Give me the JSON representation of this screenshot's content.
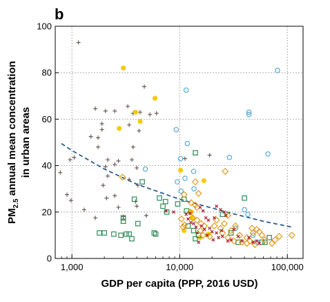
{
  "chart_data": {
    "type": "scatter",
    "panel_label": "b",
    "xlabel": "GDP per capita (PPP, 2016 USD)",
    "ylabel_line1_main": "PM",
    "ylabel_line1_sub": "2.5",
    "ylabel_line1_rest": " annual mean concentration",
    "ylabel_line2": "in urban areas",
    "x_scale": "log",
    "xlim": [
      700,
      140000
    ],
    "ylim": [
      0,
      100
    ],
    "x_ticks": [
      1000,
      10000,
      100000
    ],
    "x_tick_labels": [
      "1,000",
      "10,000",
      "100,000"
    ],
    "y_ticks": [
      0,
      20,
      40,
      60,
      80,
      100
    ],
    "y_tick_labels": [
      "0",
      "20",
      "40",
      "60",
      "80",
      "100"
    ],
    "grid": true,
    "trend_line": {
      "style": "dashed",
      "color": "#2a5d8f",
      "points": [
        [
          800,
          49.5
        ],
        [
          1000,
          46.5
        ],
        [
          2000,
          38.5
        ],
        [
          4000,
          32
        ],
        [
          10000,
          25.5
        ],
        [
          30000,
          19.5
        ],
        [
          60000,
          16
        ],
        [
          110000,
          13.5
        ]
      ]
    },
    "series": [
      {
        "marker": "plus",
        "color": "#6b5e57",
        "points": [
          [
            1150,
            93
          ],
          [
            4700,
            74
          ],
          [
            3300,
            65.5
          ],
          [
            1650,
            64.5
          ],
          [
            2050,
            63.5
          ],
          [
            2500,
            63.5
          ],
          [
            4300,
            63
          ],
          [
            3700,
            62.5
          ],
          [
            5300,
            62
          ],
          [
            6100,
            62.5
          ],
          [
            1900,
            58
          ],
          [
            3400,
            57.5
          ],
          [
            1900,
            55.5
          ],
          [
            4200,
            55
          ],
          [
            1500,
            52.5
          ],
          [
            1750,
            52
          ],
          [
            1750,
            48
          ],
          [
            3700,
            48
          ],
          [
            1050,
            43.5
          ],
          [
            960,
            42.5
          ],
          [
            2150,
            42.5
          ],
          [
            2700,
            42
          ],
          [
            3600,
            42.5
          ],
          [
            2500,
            40.5
          ],
          [
            2050,
            39.5
          ],
          [
            4000,
            39
          ],
          [
            11200,
            43
          ],
          [
            19000,
            44.5
          ],
          [
            2150,
            35.5
          ],
          [
            3400,
            34
          ],
          [
            1950,
            31.5
          ],
          [
            4100,
            31.5
          ],
          [
            2500,
            27
          ],
          [
            900,
            27.5
          ],
          [
            2100,
            26
          ],
          [
            980,
            25
          ],
          [
            3900,
            24.5
          ],
          [
            4000,
            22.5
          ],
          [
            2700,
            22
          ],
          [
            1300,
            21
          ],
          [
            4900,
            18.5
          ],
          [
            1650,
            17.5
          ],
          [
            3000,
            18
          ],
          [
            780,
            37
          ]
        ]
      },
      {
        "marker": "circle-open",
        "color": "#5aa7d8",
        "points": [
          [
            81000,
            81
          ],
          [
            11500,
            72.5
          ],
          [
            44000,
            63
          ],
          [
            44000,
            62
          ],
          [
            9300,
            55.5
          ],
          [
            11800,
            49.5
          ],
          [
            10200,
            43
          ],
          [
            29000,
            43.5
          ],
          [
            66000,
            45
          ],
          [
            4800,
            38.5
          ],
          [
            13500,
            37.5
          ],
          [
            9500,
            33
          ],
          [
            10300,
            29
          ],
          [
            11200,
            34.5
          ],
          [
            13600,
            30
          ],
          [
            40000,
            21
          ],
          [
            43000,
            19
          ],
          [
            33000,
            13
          ],
          [
            48000,
            10
          ],
          [
            52000,
            7
          ]
        ]
      },
      {
        "marker": "circle-filled",
        "color": "#f2cc0c",
        "points": [
          [
            3000,
            82
          ],
          [
            5900,
            69
          ],
          [
            3900,
            63
          ],
          [
            2750,
            56
          ],
          [
            4300,
            59
          ],
          [
            10200,
            38
          ],
          [
            16800,
            33.5
          ],
          [
            12800,
            20
          ],
          [
            13000,
            17.5
          ],
          [
            18500,
            10.5
          ],
          [
            11000,
            12
          ],
          [
            15500,
            9
          ]
        ]
      },
      {
        "marker": "square-open",
        "color": "#2e8b57",
        "points": [
          [
            14000,
            45.5
          ],
          [
            4500,
            33
          ],
          [
            6500,
            26
          ],
          [
            3800,
            25.5
          ],
          [
            7000,
            22.5
          ],
          [
            7600,
            20
          ],
          [
            7400,
            24.5
          ],
          [
            11000,
            25.5
          ],
          [
            9600,
            23.5
          ],
          [
            11600,
            20.5
          ],
          [
            3000,
            16
          ],
          [
            3000,
            17.5
          ],
          [
            2000,
            11
          ],
          [
            2450,
            10.5
          ],
          [
            2850,
            10
          ],
          [
            3200,
            10.5
          ],
          [
            3400,
            10.5
          ],
          [
            3600,
            8.5
          ],
          [
            1800,
            11
          ],
          [
            5800,
            11
          ],
          [
            6000,
            10.5
          ],
          [
            4100,
            15
          ],
          [
            12000,
            14
          ],
          [
            13500,
            12
          ],
          [
            15000,
            10
          ],
          [
            14000,
            8.5
          ],
          [
            25000,
            19
          ],
          [
            30000,
            11
          ],
          [
            40000,
            26
          ],
          [
            35000,
            7
          ],
          [
            58000,
            7
          ],
          [
            62000,
            7
          ],
          [
            68000,
            9
          ]
        ]
      },
      {
        "marker": "diamond-open",
        "color": "#e09a1c",
        "points": [
          [
            26500,
            37.5
          ],
          [
            2950,
            35
          ],
          [
            14000,
            33
          ],
          [
            15000,
            28
          ],
          [
            11000,
            27.5
          ],
          [
            12800,
            24
          ],
          [
            14000,
            23
          ],
          [
            14500,
            22
          ],
          [
            12500,
            20
          ],
          [
            10400,
            17
          ],
          [
            11100,
            14.5
          ],
          [
            10800,
            13.5
          ],
          [
            13200,
            17.5
          ],
          [
            14500,
            16.5
          ],
          [
            15800,
            15
          ],
          [
            17000,
            14
          ],
          [
            15600,
            12
          ],
          [
            16500,
            10
          ],
          [
            19000,
            9.5
          ],
          [
            22000,
            16.5
          ],
          [
            21000,
            14
          ],
          [
            24000,
            13
          ],
          [
            26000,
            15
          ],
          [
            28000,
            18.5
          ],
          [
            25000,
            11
          ],
          [
            28000,
            9
          ],
          [
            30000,
            12
          ],
          [
            33000,
            14
          ],
          [
            36000,
            10
          ],
          [
            32000,
            7.5
          ],
          [
            38000,
            7
          ],
          [
            42000,
            9
          ],
          [
            45000,
            7.5
          ],
          [
            48000,
            11
          ],
          [
            52000,
            12.5
          ],
          [
            47000,
            13
          ],
          [
            55000,
            11.5
          ],
          [
            58000,
            10
          ],
          [
            62000,
            8
          ],
          [
            50000,
            6
          ],
          [
            42000,
            6.5
          ],
          [
            72000,
            6.5
          ],
          [
            77000,
            8
          ],
          [
            84000,
            9.5
          ],
          [
            110000,
            10
          ]
        ]
      },
      {
        "marker": "cross",
        "color": "#b22234",
        "points": [
          [
            7500,
            20.5
          ],
          [
            8800,
            20
          ],
          [
            11500,
            19
          ],
          [
            12500,
            19.5
          ],
          [
            12000,
            17
          ],
          [
            13500,
            15
          ],
          [
            14200,
            13.5
          ],
          [
            15500,
            22
          ],
          [
            16500,
            20.5
          ],
          [
            17500,
            17.5
          ],
          [
            18500,
            16.5
          ],
          [
            16000,
            14
          ],
          [
            17000,
            12.5
          ],
          [
            19000,
            13
          ],
          [
            20000,
            11.5
          ],
          [
            22000,
            11
          ],
          [
            23000,
            9
          ],
          [
            18000,
            10
          ],
          [
            20500,
            8
          ],
          [
            22000,
            22.5
          ],
          [
            24000,
            21
          ],
          [
            26000,
            20
          ],
          [
            27000,
            18.5
          ],
          [
            25000,
            9.5
          ],
          [
            28000,
            7.5
          ],
          [
            30000,
            8
          ],
          [
            32000,
            12.5
          ],
          [
            35000,
            9.5
          ],
          [
            38000,
            7.5
          ],
          [
            44000,
            9
          ],
          [
            48000,
            7
          ],
          [
            52000,
            7.5
          ],
          [
            55000,
            6.5
          ],
          [
            14500,
            11
          ],
          [
            15000,
            7
          ],
          [
            24500,
            12
          ],
          [
            21000,
            17.5
          ],
          [
            12700,
            15.5
          ]
        ]
      }
    ]
  }
}
